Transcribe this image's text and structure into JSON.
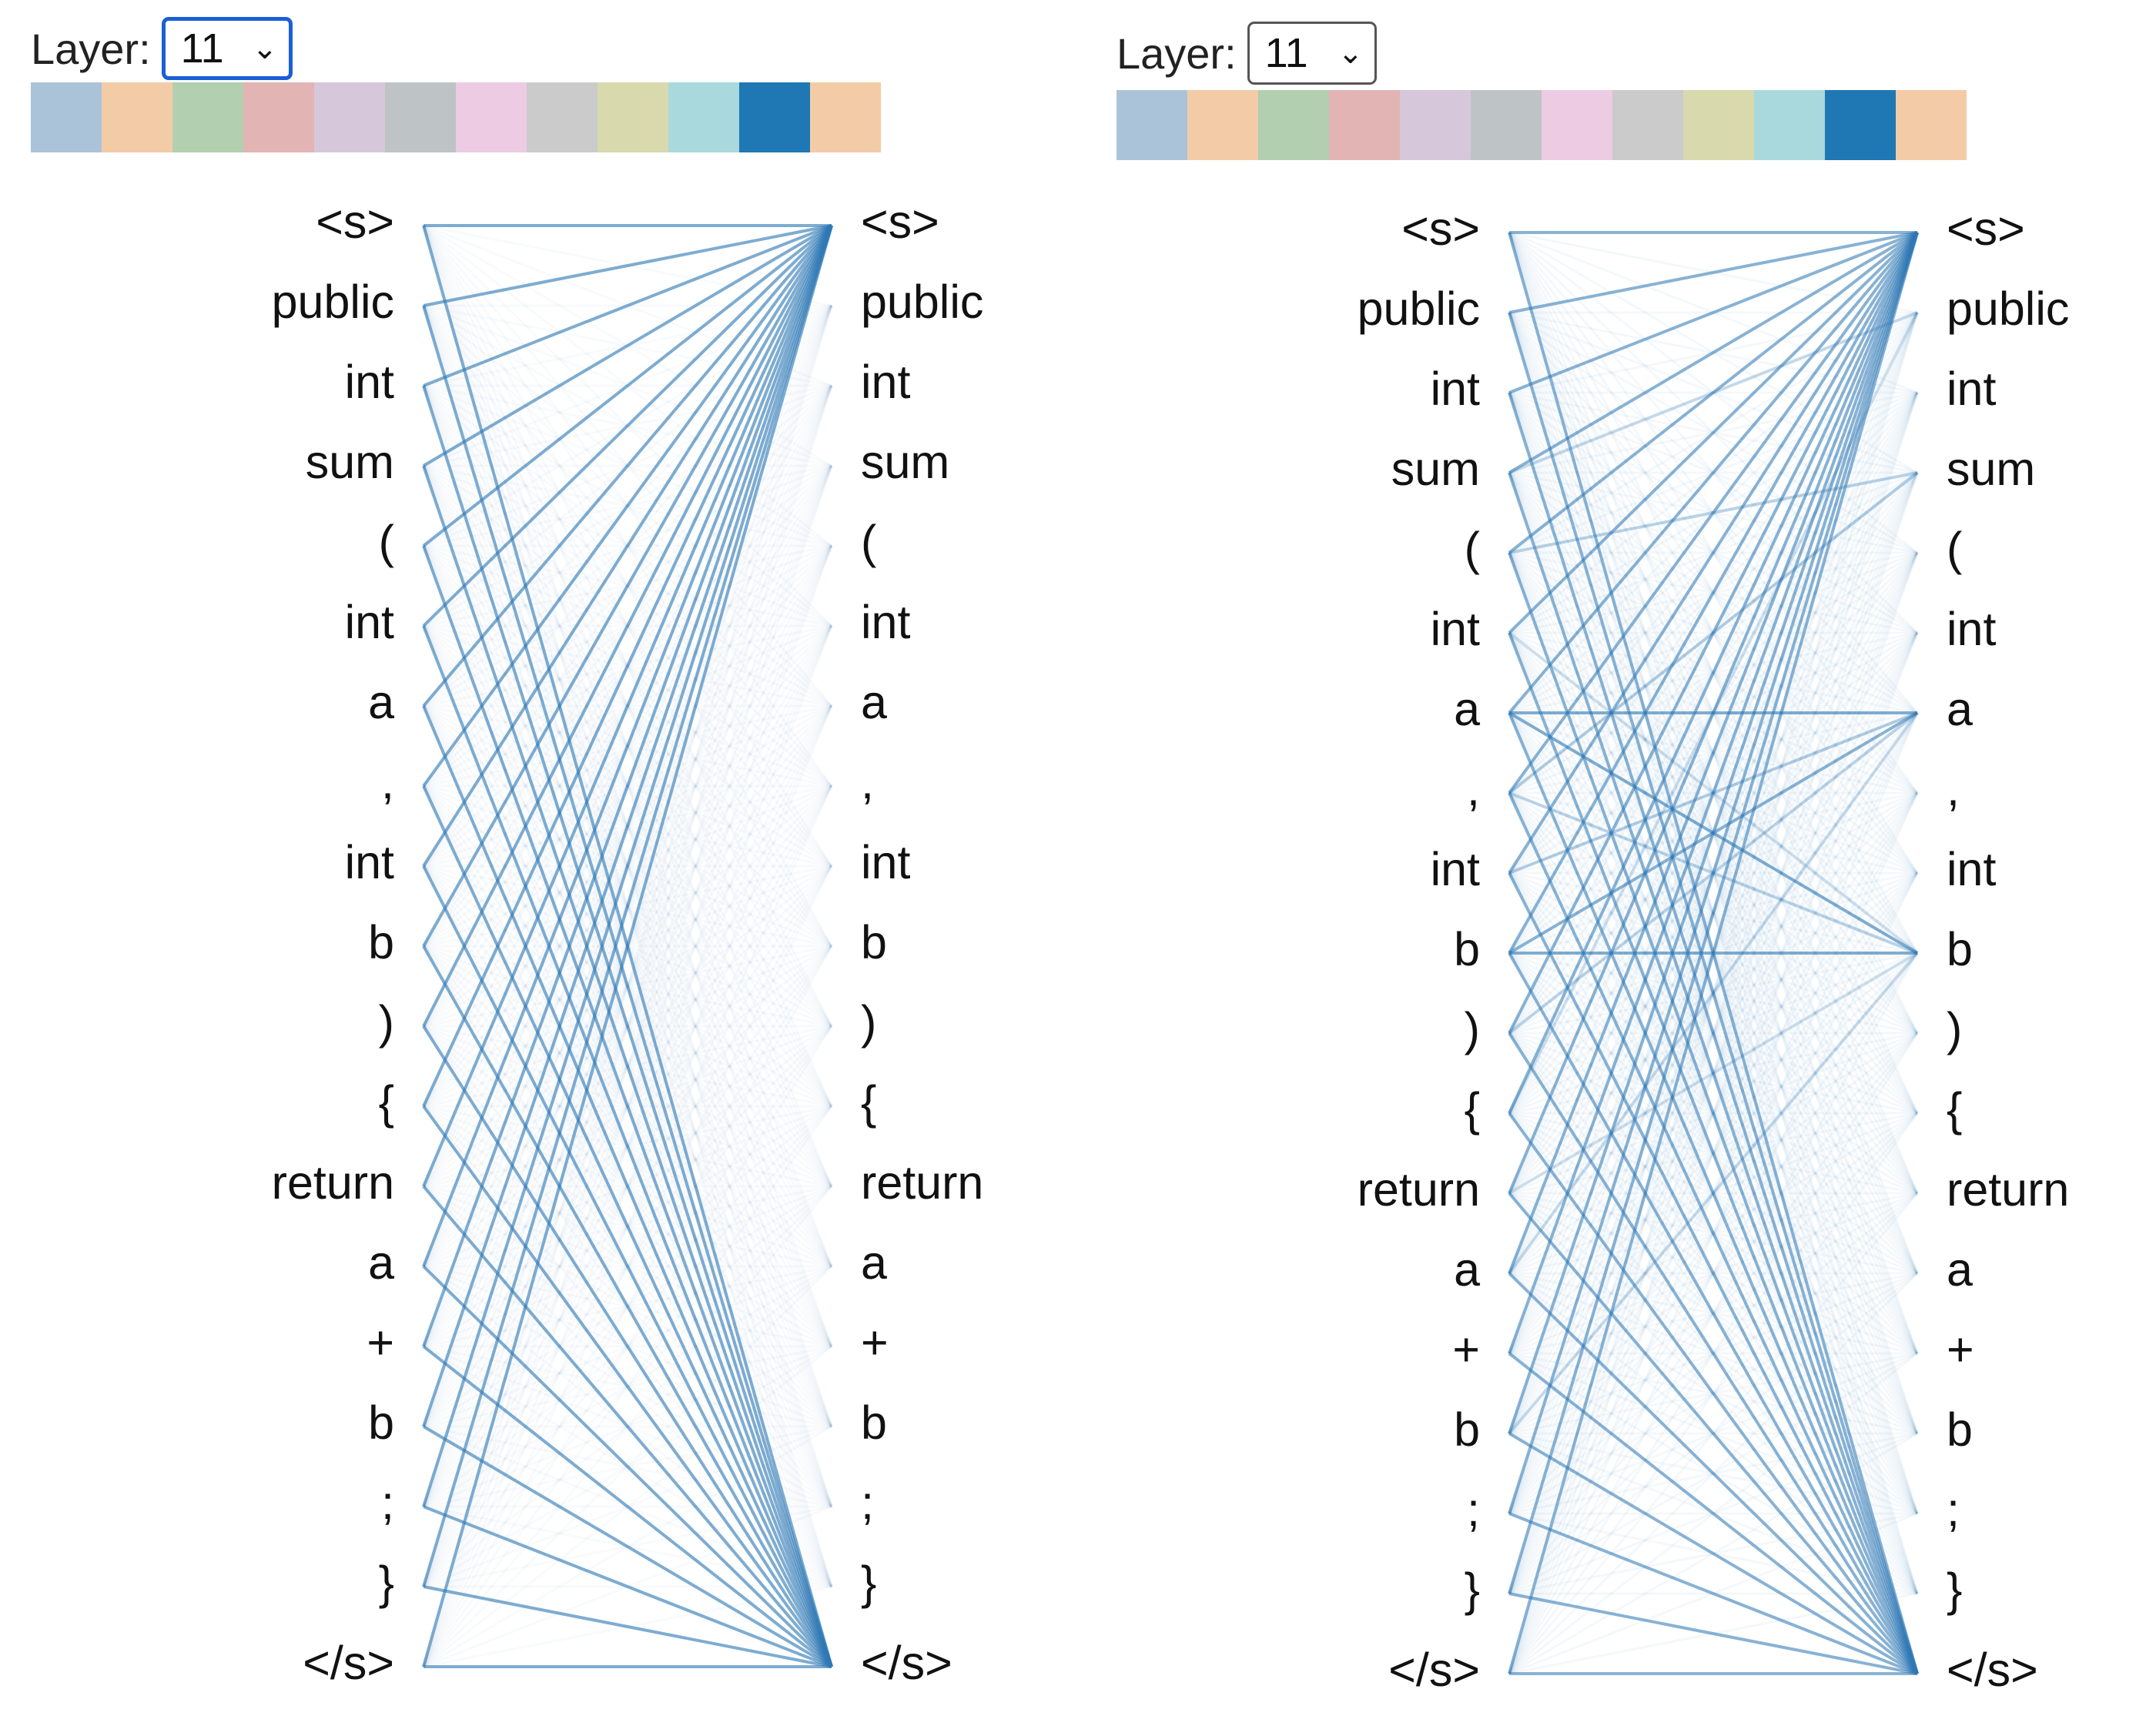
{
  "left_panel": {
    "layer_label": "Layer:",
    "layer_value": "11",
    "layer_select_focused": true
  },
  "right_panel": {
    "layer_label": "Layer:",
    "layer_value": "11",
    "layer_select_focused": false
  },
  "head_colors": [
    "#aac3d9",
    "#f3cca7",
    "#b2cfb0",
    "#e3b4b4",
    "#d6c8da",
    "#bec3c6",
    "#eccbe3",
    "#cbcbcb",
    "#d8d9ad",
    "#a9d9dc",
    "#1f77b4",
    "#f3cca7"
  ],
  "selected_head_index": 10,
  "tokens": [
    "<s>",
    "public",
    "int",
    "sum",
    "(",
    "int",
    "a",
    ",",
    "int",
    "b",
    ")",
    "{",
    "return",
    "a",
    "+",
    "b",
    ";",
    "}",
    "</s>"
  ],
  "edge_color": "#2f79b5",
  "chev_icon": "chevron-down-icon"
}
